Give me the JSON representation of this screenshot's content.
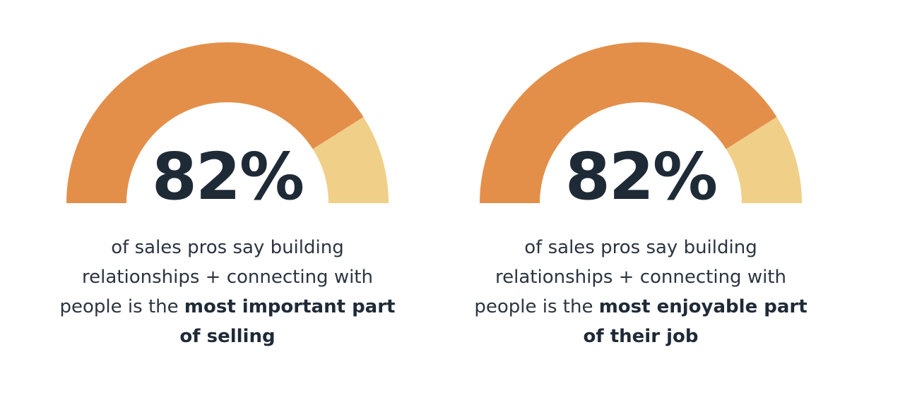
{
  "colors": {
    "primary": "#e38f4a",
    "remainder": "#f0cf88",
    "text": "#1f2a37"
  },
  "chart_data": [
    {
      "type": "pie",
      "style": "half-donut gauge",
      "value_label": "82%",
      "values": [
        82,
        18
      ],
      "caption_parts": [
        "of sales pros say building relationships + connecting with people is the ",
        "most important part of selling"
      ]
    },
    {
      "type": "pie",
      "style": "half-donut gauge",
      "value_label": "82%",
      "values": [
        82,
        18
      ],
      "caption_parts": [
        "of sales pros say building relationships + connecting with people is the ",
        "most enjoyable part of their job"
      ]
    }
  ]
}
